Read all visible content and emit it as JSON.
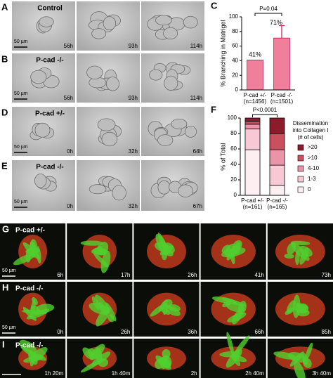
{
  "panels": [
    {
      "letter": "A",
      "label": "Control",
      "times": [
        "56h",
        "93h",
        "114h"
      ],
      "scale": "50 µm"
    },
    {
      "letter": "B",
      "label": "P-cad -/-",
      "times": [
        "56h",
        "93h",
        "114h"
      ],
      "scale": "50 µm"
    },
    {
      "letter": "D",
      "label": "P-cad +/-",
      "times": [
        "0h",
        "32h",
        "64h"
      ],
      "scale": "50 µm"
    },
    {
      "letter": "E",
      "label": "P-cad -/-",
      "times": [
        "0h",
        "32h",
        "67h"
      ],
      "scale": "50 µm"
    },
    {
      "letter": "G",
      "label": "P-cad +/-",
      "times": [
        "6h",
        "17h",
        "26h",
        "41h",
        "73h"
      ],
      "scale": "50 µm"
    },
    {
      "letter": "H",
      "label": "P-cad -/-",
      "times": [
        "0h",
        "26h",
        "36h",
        "66h",
        "85h"
      ],
      "scale": "50 µm"
    },
    {
      "letter": "I",
      "label": "P-cad -/-",
      "times": [
        "1h 20m",
        "1h 40m",
        "2h",
        "2h 40m",
        "3h 40m"
      ]
    }
  ],
  "chart_data": [
    {
      "type": "bar",
      "panel": "C",
      "y_label": "% Branching in Matrigel",
      "categories": [
        "P-cad +/-",
        "P-cad -/-"
      ],
      "n_labels": [
        "(n=1456)",
        "(n=1501)"
      ],
      "values": [
        41,
        71
      ],
      "value_labels": [
        "41%",
        "71%"
      ],
      "errors": [
        null,
        17
      ],
      "color": "#f07f9c",
      "annotation": "P=0.04",
      "ylim": [
        0,
        100
      ],
      "yticks": [
        0,
        20,
        40,
        60,
        80,
        100
      ]
    },
    {
      "type": "stacked_bar",
      "panel": "F",
      "y_label": "% of Total",
      "categories": [
        "P-cad +/-",
        "P-cad -/-"
      ],
      "n_labels": [
        "(n=161)",
        "(n=165)"
      ],
      "annotation": "P<0.0001",
      "legend_title": [
        "Dissemination",
        "into Collagen I",
        "(# of cells)"
      ],
      "series": [
        {
          "name": "0",
          "color": "#fdeef2",
          "values": [
            59,
            13
          ]
        },
        {
          "name": "1-3",
          "color": "#f7c9d4",
          "values": [
            27,
            26
          ]
        },
        {
          "name": "4-10",
          "color": "#eb93a8",
          "values": [
            6,
            20
          ]
        },
        {
          "name": ">10",
          "color": "#c9505f",
          "values": [
            4,
            21
          ]
        },
        {
          "name": ">20",
          "color": "#8c1b2c",
          "values": [
            4,
            20
          ]
        }
      ],
      "ylim": [
        0,
        100
      ],
      "yticks": [
        0,
        20,
        40,
        60,
        80,
        100
      ]
    }
  ]
}
